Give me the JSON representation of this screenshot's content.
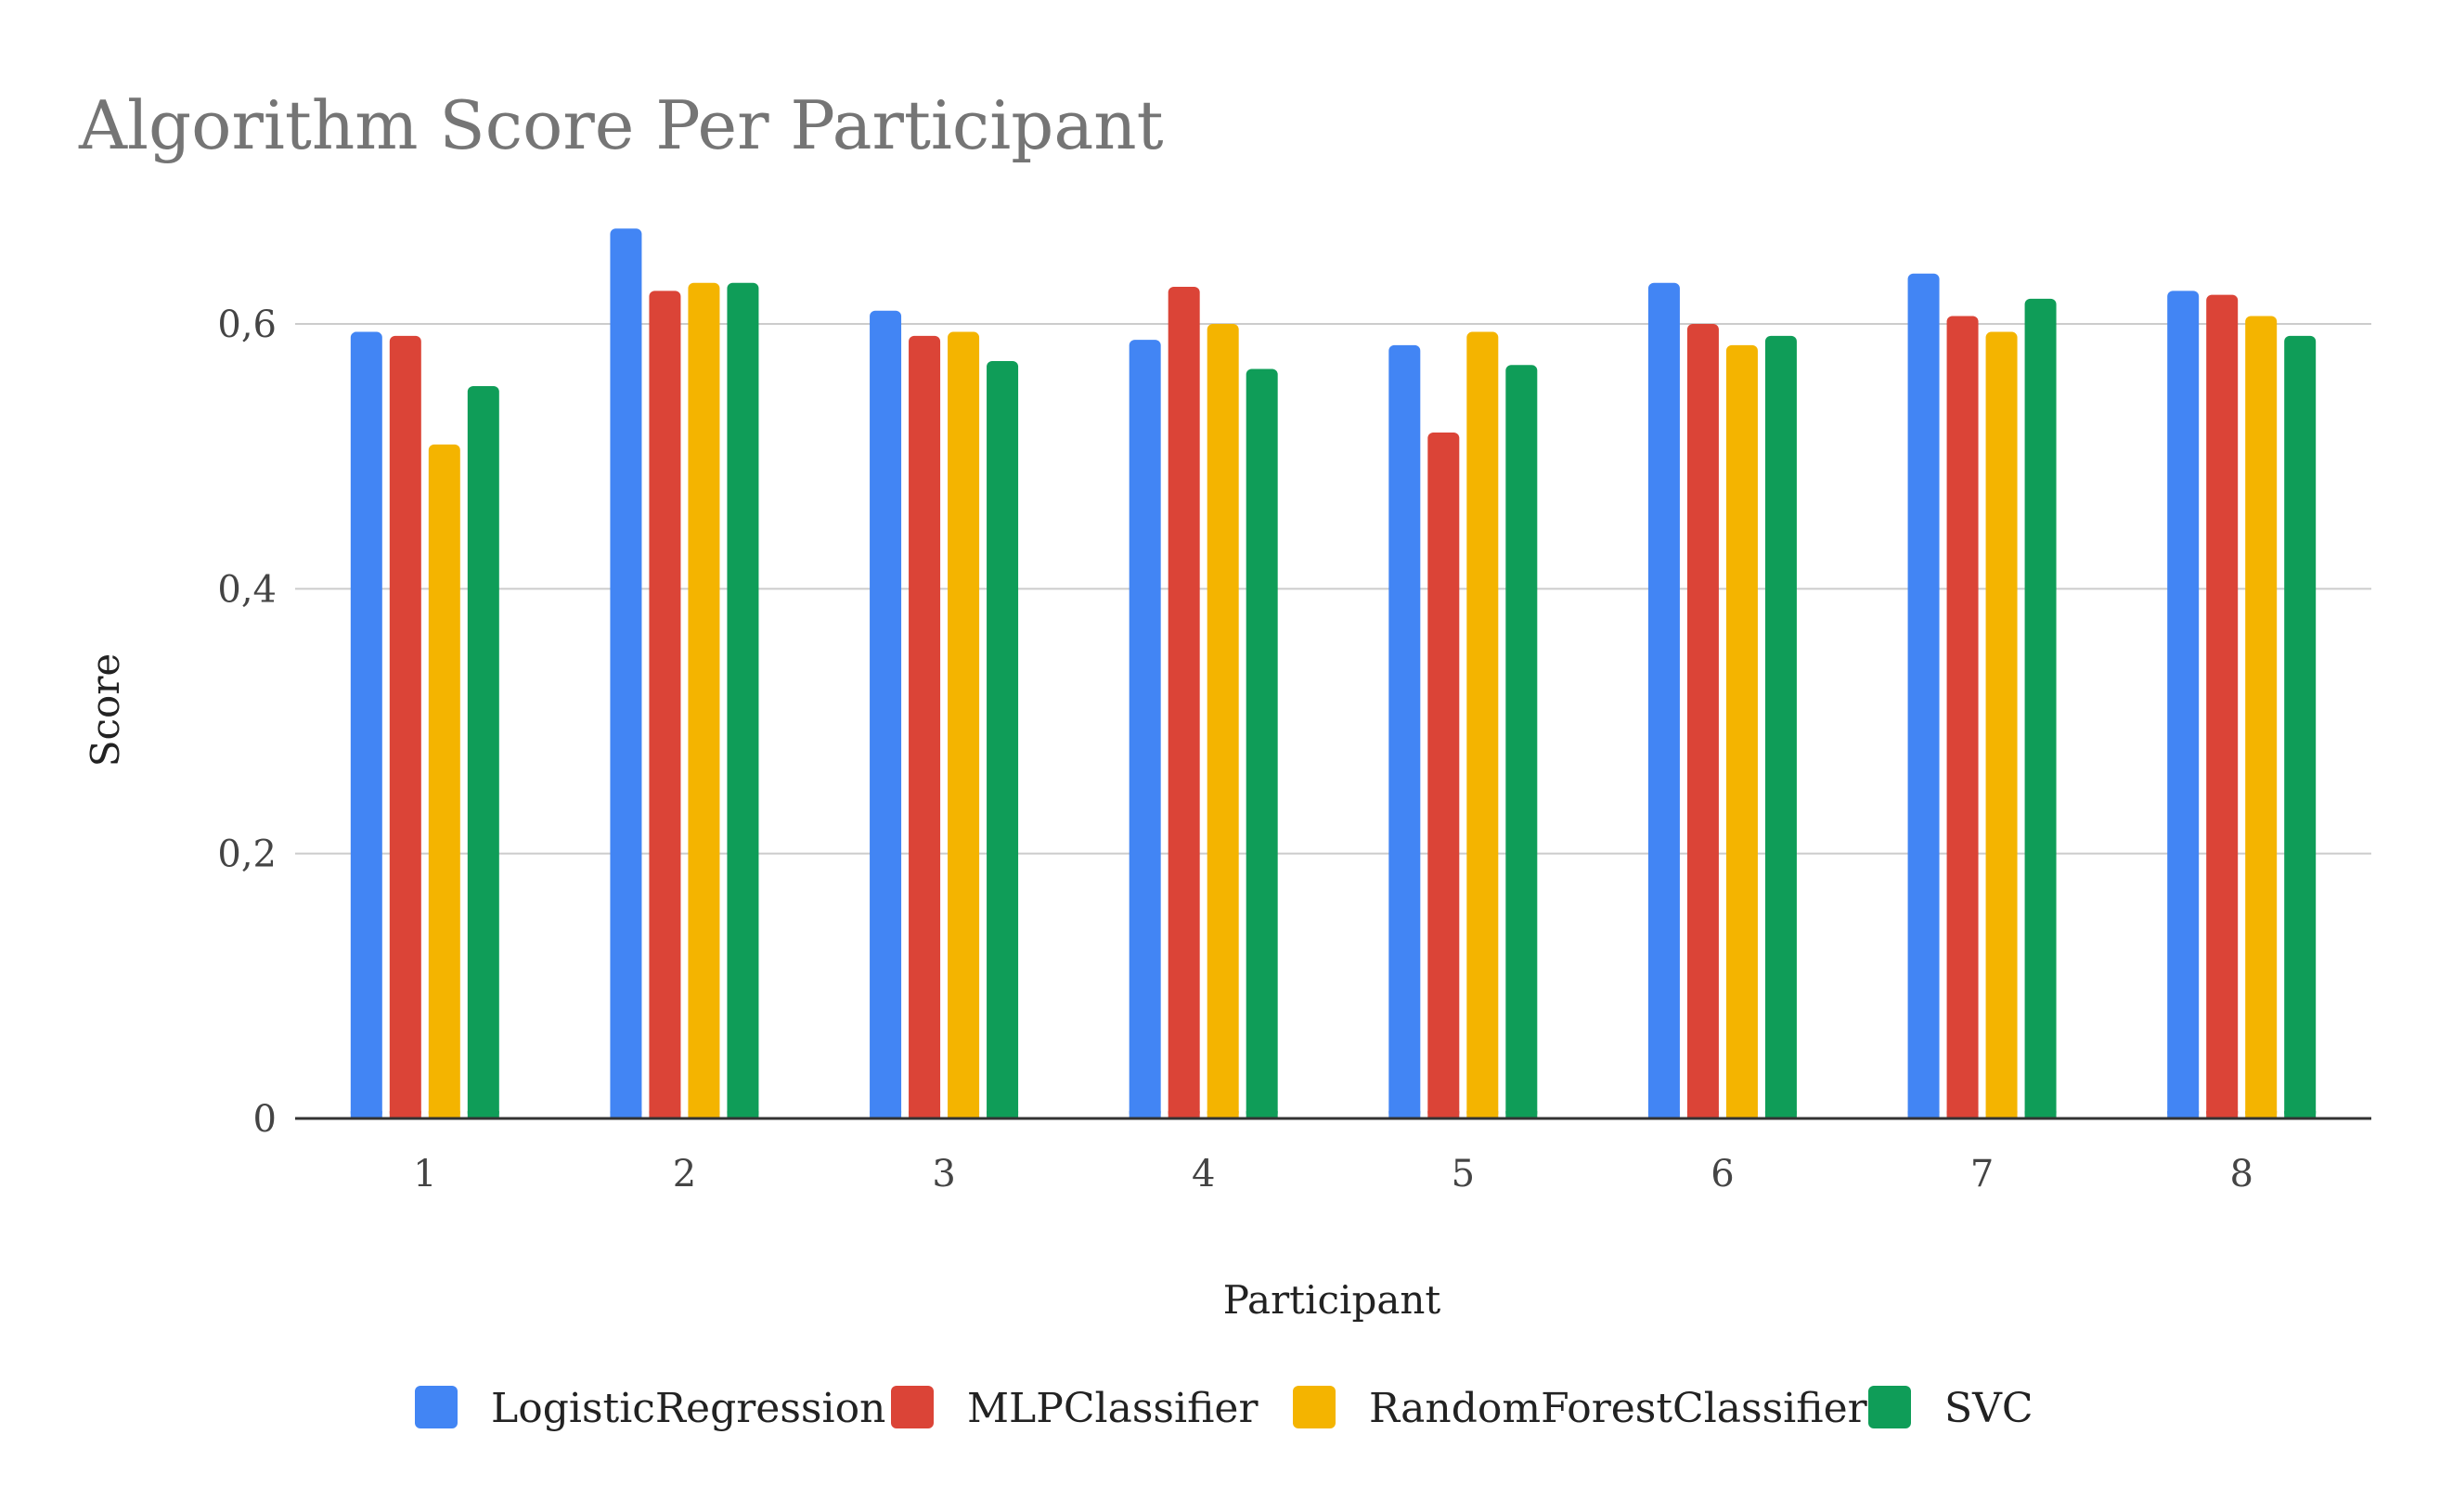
{
  "chart_data": {
    "type": "bar",
    "title": "Algorithm Score Per Participant",
    "xlabel": "Participant",
    "ylabel": "Score",
    "categories": [
      "1",
      "2",
      "3",
      "4",
      "5",
      "6",
      "7",
      "8"
    ],
    "ylim": [
      0,
      0.75
    ],
    "yticks": [
      0,
      0.2,
      0.4,
      0.6
    ],
    "ytick_labels": [
      "0",
      "0,2",
      "0,4",
      "0,6"
    ],
    "grid": true,
    "legend_position": "bottom",
    "series": [
      {
        "name": "LogisticRegression",
        "color": "#4285f4",
        "values": [
          0.594,
          0.672,
          0.61,
          0.588,
          0.584,
          0.631,
          0.638,
          0.625
        ]
      },
      {
        "name": "MLPClassifier",
        "color": "#db4437",
        "values": [
          0.591,
          0.625,
          0.591,
          0.628,
          0.518,
          0.6,
          0.606,
          0.622
        ]
      },
      {
        "name": "RandomForestClassifier",
        "color": "#f4b400",
        "values": [
          0.509,
          0.631,
          0.594,
          0.6,
          0.594,
          0.584,
          0.594,
          0.606
        ]
      },
      {
        "name": "SVC",
        "color": "#0f9d58",
        "values": [
          0.553,
          0.631,
          0.572,
          0.566,
          0.569,
          0.591,
          0.619,
          0.591
        ]
      }
    ]
  }
}
